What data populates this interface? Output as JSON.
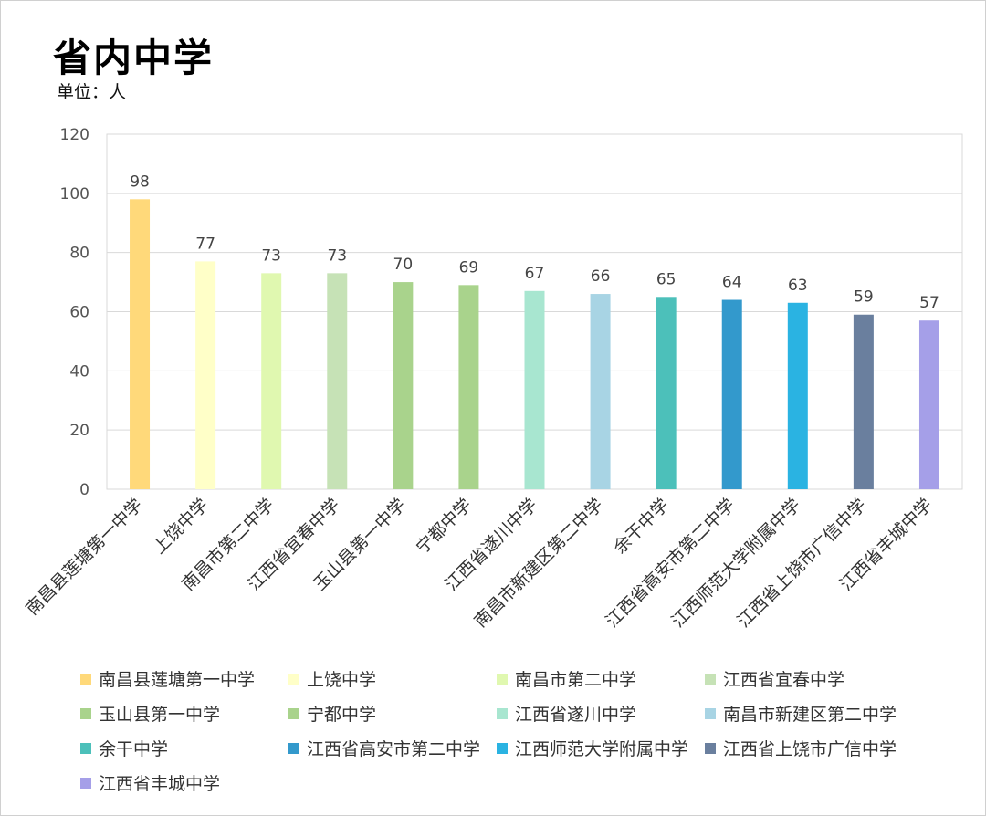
{
  "title": "省内中学",
  "unit_label": "单位：人",
  "chart_data": {
    "type": "bar",
    "categories": [
      "南昌县莲塘第一中学",
      "上饶中学",
      "南昌市第二中学",
      "江西省宜春中学",
      "玉山县第一中学",
      "宁都中学",
      "江西省遂川中学",
      "南昌市新建区第二中学",
      "余干中学",
      "江西省高安市第二中学",
      "江西师范大学附属中学",
      "江西省上饶市广信中学",
      "江西省丰城中学"
    ],
    "values": [
      98,
      77,
      73,
      73,
      70,
      69,
      67,
      66,
      65,
      64,
      63,
      59,
      57
    ],
    "colors": [
      "#FFD97A",
      "#FFFFC8",
      "#E0F8B0",
      "#C6E2B6",
      "#A9D38C",
      "#A9D38C",
      "#A8E6D0",
      "#A8D4E4",
      "#4CC0BA",
      "#3399CC",
      "#2AB3E2",
      "#6A7F9E",
      "#A59FE8"
    ],
    "ylim": [
      0,
      120
    ],
    "yticks": [
      0,
      20,
      40,
      60,
      80,
      100,
      120
    ],
    "grid": true,
    "legend": "bottom"
  }
}
